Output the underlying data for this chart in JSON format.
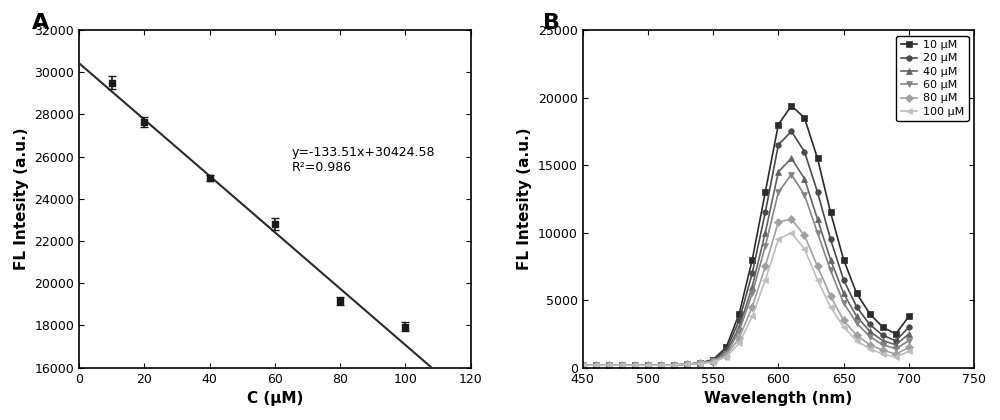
{
  "panel_A": {
    "x": [
      10,
      20,
      40,
      60,
      80,
      100
    ],
    "y": [
      29500,
      27650,
      25000,
      22800,
      19150,
      17950
    ],
    "yerr": [
      300,
      250,
      150,
      280,
      180,
      200
    ],
    "slope": -133.51,
    "intercept": 30424.58,
    "r2": 0.986,
    "xlabel": "C (μM)",
    "ylabel": "FL Intesity (a.u.)",
    "xlim": [
      0,
      120
    ],
    "ylim": [
      16000,
      32000
    ],
    "yticks": [
      16000,
      18000,
      20000,
      22000,
      24000,
      26000,
      28000,
      30000,
      32000
    ],
    "xticks": [
      0,
      20,
      40,
      60,
      80,
      100,
      120
    ],
    "label": "A",
    "eq_text": "y=-133.51x+30424.58",
    "r2_text": "R²=0.986",
    "eq_x": 65,
    "eq_y": 26500
  },
  "panel_B": {
    "wavelengths": [
      450,
      460,
      470,
      480,
      490,
      500,
      510,
      520,
      530,
      540,
      550,
      560,
      570,
      580,
      590,
      600,
      610,
      620,
      630,
      640,
      650,
      660,
      670,
      680,
      690,
      700
    ],
    "series": {
      "10 μM": [
        200,
        200,
        200,
        200,
        200,
        200,
        200,
        200,
        250,
        350,
        600,
        1500,
        4000,
        8000,
        13000,
        18000,
        19400,
        18500,
        15500,
        11500,
        8000,
        5500,
        4000,
        3000,
        2500,
        3800
      ],
      "20 μM": [
        200,
        200,
        200,
        200,
        200,
        200,
        200,
        200,
        250,
        350,
        550,
        1300,
        3500,
        7000,
        11500,
        16500,
        17500,
        16000,
        13000,
        9500,
        6500,
        4500,
        3200,
        2400,
        2000,
        3000
      ],
      "40 μM": [
        200,
        200,
        200,
        200,
        200,
        200,
        200,
        200,
        250,
        350,
        500,
        1100,
        3000,
        6000,
        10000,
        14500,
        15500,
        14000,
        11000,
        8000,
        5500,
        3800,
        2700,
        2000,
        1700,
        2500
      ],
      "60 μM": [
        200,
        200,
        200,
        200,
        200,
        200,
        200,
        200,
        250,
        350,
        500,
        1000,
        2700,
        5500,
        9000,
        13000,
        14300,
        12800,
        10000,
        7200,
        4800,
        3300,
        2300,
        1700,
        1400,
        2000
      ],
      "80 μM": [
        200,
        200,
        200,
        200,
        200,
        200,
        200,
        200,
        250,
        350,
        450,
        900,
        2200,
        4500,
        7500,
        10800,
        11000,
        9800,
        7500,
        5300,
        3500,
        2400,
        1700,
        1300,
        1000,
        1500
      ],
      "100 μM": [
        200,
        200,
        200,
        200,
        200,
        200,
        200,
        200,
        250,
        300,
        400,
        800,
        1800,
        3800,
        6500,
        9500,
        10000,
        8800,
        6500,
        4500,
        3000,
        2000,
        1400,
        1000,
        800,
        1200
      ]
    },
    "colors": [
      "#2b2b2b",
      "#4a4a4a",
      "#636363",
      "#848484",
      "#a0a0a0",
      "#bebebe"
    ],
    "markers": [
      "s",
      "o",
      "^",
      "v",
      "D",
      "<"
    ],
    "xlabel": "Wavelength (nm)",
    "ylabel": "FL Intesity (a.u.)",
    "xlim": [
      450,
      750
    ],
    "ylim": [
      0,
      25000
    ],
    "xticks": [
      450,
      500,
      550,
      600,
      650,
      700,
      750
    ],
    "yticks": [
      0,
      5000,
      10000,
      15000,
      20000,
      25000
    ],
    "label": "B"
  }
}
